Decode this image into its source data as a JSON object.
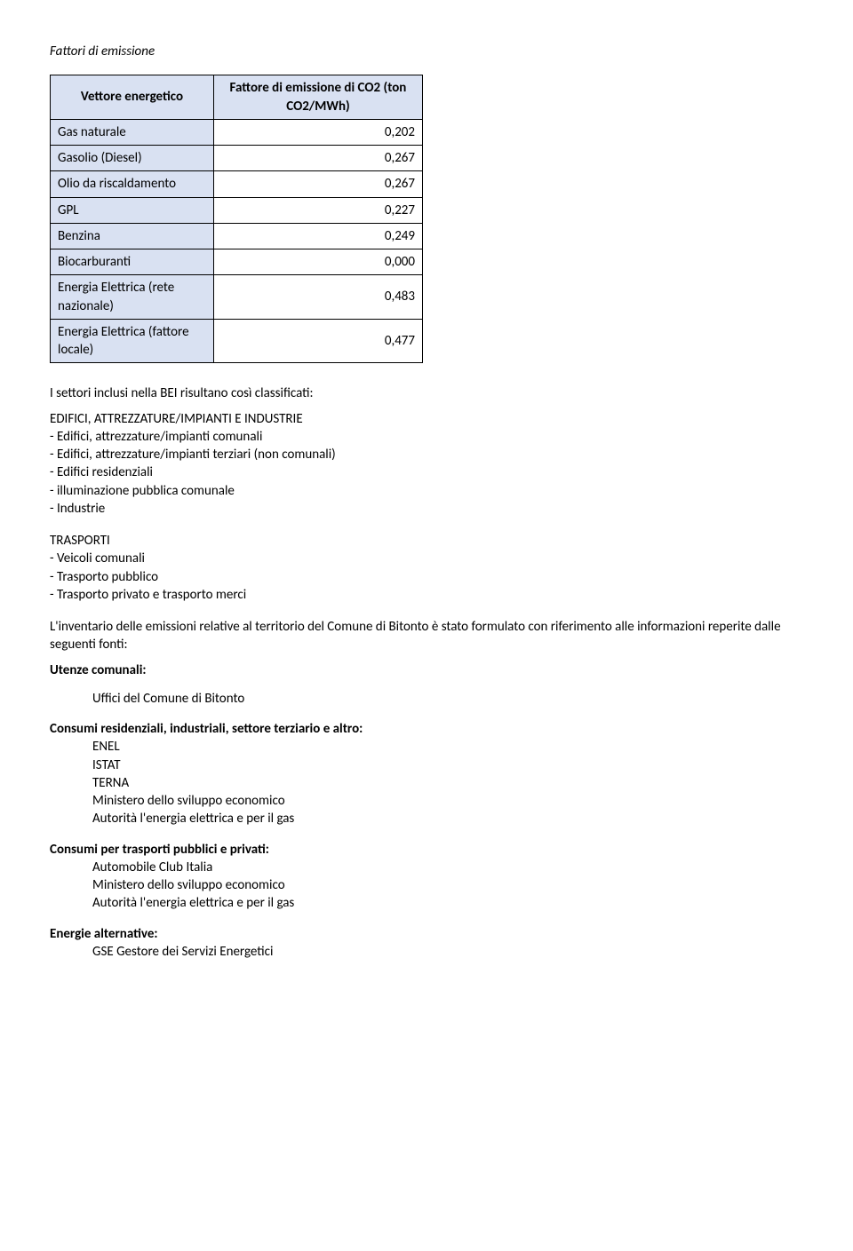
{
  "section_title": "Fattori di emissione",
  "table": {
    "headers": [
      "Vettore energetico",
      "Fattore di emissione di CO2 (ton CO2/MWh)"
    ],
    "rows": [
      {
        "label": "Gas naturale",
        "value": "0,202"
      },
      {
        "label": "Gasolio (Diesel)",
        "value": "0,267"
      },
      {
        "label": "Olio da riscaldamento",
        "value": "0,267"
      },
      {
        "label": "GPL",
        "value": "0,227"
      },
      {
        "label": "Benzina",
        "value": "0,249"
      },
      {
        "label": "Biocarburanti",
        "value": "0,000"
      },
      {
        "label": "Energia Elettrica (rete nazionale)",
        "value": "0,483"
      },
      {
        "label": "Energia Elettrica (fattore locale)",
        "value": "0,477"
      }
    ]
  },
  "intro_line": "I settori inclusi nella BEI risultano così classificati:",
  "edifici": {
    "heading": "EDIFICI, ATTREZZATURE/IMPIANTI E INDUSTRIE",
    "items": [
      "- Edifici, attrezzature/impianti comunali",
      "- Edifici, attrezzature/impianti terziari (non comunali)",
      "- Edifici residenziali",
      "- illuminazione pubblica comunale",
      "- Industrie"
    ]
  },
  "trasporti": {
    "heading": "TRASPORTI",
    "items": [
      "- Veicoli comunali",
      "- Trasporto pubblico",
      "- Trasporto privato e trasporto merci"
    ]
  },
  "inventario_para": "L'inventario delle emissioni relative al territorio del Comune di Bitonto  è stato formulato con riferimento alle informazioni reperite dalle seguenti fonti:",
  "utenze": {
    "heading": "Utenze comunali:",
    "items": [
      "Uffici del Comune di Bitonto"
    ]
  },
  "consumi_res": {
    "heading": "Consumi residenziali, industriali, settore terziario e altro:",
    "items": [
      "ENEL",
      "ISTAT",
      "TERNA",
      "Ministero dello sviluppo economico",
      "Autorità l'energia elettrica e per il gas"
    ]
  },
  "consumi_trasp": {
    "heading": "Consumi per trasporti pubblici e privati:",
    "items": [
      "Automobile Club Italia",
      "Ministero dello sviluppo economico",
      "Autorità l'energia elettrica e per il gas"
    ]
  },
  "energie_alt": {
    "heading": "Energie alternative:",
    "items": [
      "GSE Gestore dei Servizi Energetici"
    ]
  }
}
